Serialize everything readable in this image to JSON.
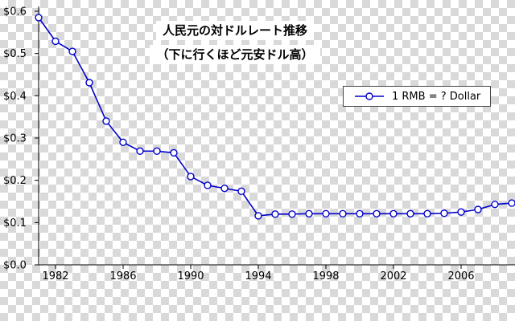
{
  "chart_data": {
    "type": "line",
    "title": "人民元の対ドルレート推移",
    "subtitle": "（下に行くほど元安ドル高）",
    "legend_label": "1 RMB = ? Dollar",
    "legend_position": "upper right",
    "grid": false,
    "background": "transparency-checkerboard",
    "line_color": "#0000cc",
    "marker": "open-circle",
    "marker_fill": "#ffffff",
    "axis_color": "#000000",
    "xlim": [
      1981,
      2009
    ],
    "ylim": [
      0,
      0.6
    ],
    "xlabel": "",
    "ylabel": "",
    "x": [
      1981,
      1982,
      1983,
      1984,
      1985,
      1986,
      1987,
      1988,
      1989,
      1990,
      1991,
      1992,
      1993,
      1994,
      1995,
      1996,
      1997,
      1998,
      1999,
      2000,
      2001,
      2002,
      2003,
      2004,
      2005,
      2006,
      2007,
      2008,
      2009
    ],
    "series": [
      {
        "name": "1 RMB = ? Dollar",
        "values": [
          0.585,
          0.529,
          0.505,
          0.431,
          0.34,
          0.29,
          0.269,
          0.269,
          0.265,
          0.209,
          0.188,
          0.181,
          0.174,
          0.116,
          0.12,
          0.12,
          0.121,
          0.121,
          0.121,
          0.121,
          0.121,
          0.121,
          0.121,
          0.121,
          0.122,
          0.125,
          0.131,
          0.143,
          0.146
        ]
      }
    ],
    "xticks": [
      {
        "value": 1982,
        "label": "1982"
      },
      {
        "value": 1986,
        "label": "1986"
      },
      {
        "value": 1990,
        "label": "1990"
      },
      {
        "value": 1994,
        "label": "1994"
      },
      {
        "value": 1998,
        "label": "1998"
      },
      {
        "value": 2002,
        "label": "2002"
      },
      {
        "value": 2006,
        "label": "2006"
      }
    ],
    "yticks": [
      {
        "value": 0.0,
        "label": "$0.0"
      },
      {
        "value": 0.1,
        "label": "$0.1"
      },
      {
        "value": 0.2,
        "label": "$0.2"
      },
      {
        "value": 0.3,
        "label": "$0.3"
      },
      {
        "value": 0.4,
        "label": "$0.4"
      },
      {
        "value": 0.5,
        "label": "$0.5"
      },
      {
        "value": 0.6,
        "label": "$0.6"
      }
    ]
  }
}
